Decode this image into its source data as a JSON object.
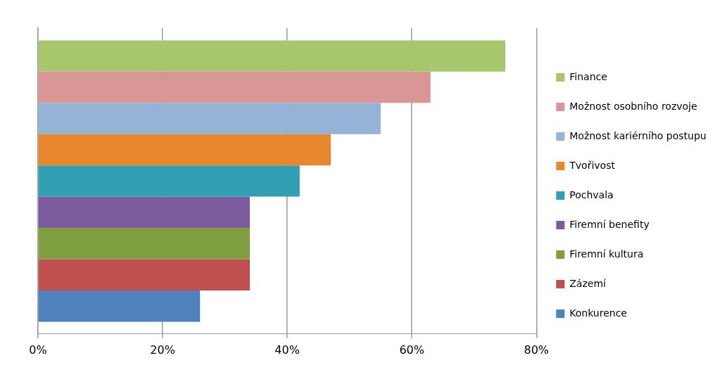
{
  "chart_data": {
    "type": "bar",
    "orientation": "horizontal",
    "categories": [
      null
    ],
    "series": [
      {
        "name": "Finance",
        "color": "#a8c66c",
        "values": [
          75
        ]
      },
      {
        "name": "Možnost osobního rozvoje",
        "color": "#d99694",
        "values": [
          63
        ]
      },
      {
        "name": "Možnost kariérního postupu",
        "color": "#95b3d7",
        "values": [
          55
        ]
      },
      {
        "name": "Tvořivost",
        "color": "#e8872e",
        "values": [
          47
        ]
      },
      {
        "name": "Pochvala",
        "color": "#31a0b5",
        "values": [
          42
        ]
      },
      {
        "name": "Firemní benefity",
        "color": "#7d5a9e",
        "values": [
          34
        ]
      },
      {
        "name": "Firemní kultura",
        "color": "#7f9f3f",
        "values": [
          34
        ]
      },
      {
        "name": "Zázemí",
        "color": "#c0504d",
        "values": [
          34
        ]
      },
      {
        "name": "Konkurence",
        "color": "#4f81bd",
        "values": [
          26
        ]
      }
    ],
    "xlim": [
      0,
      80
    ],
    "xticks": [
      {
        "value": 0,
        "label": "0%"
      },
      {
        "value": 20,
        "label": "20%"
      },
      {
        "value": 40,
        "label": "40%"
      },
      {
        "value": 60,
        "label": "60%"
      },
      {
        "value": 80,
        "label": "80%"
      }
    ],
    "grid": "x",
    "legend": "right"
  }
}
